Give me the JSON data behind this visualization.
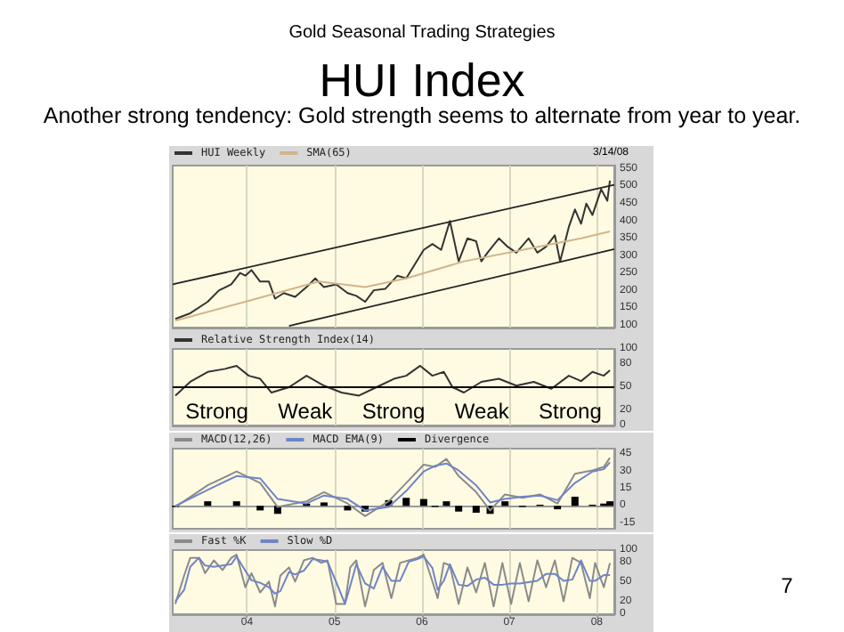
{
  "chart_data": [
    {
      "type": "line",
      "title": "HUI Index",
      "subtitle": "Another strong tendency: Gold strength seems to alternate from year to year.",
      "annotations": [
        "Gold Seasonal Trading Strategies",
        "3/14/08",
        "7"
      ],
      "legend": "top left",
      "grid": "x",
      "tick_labels": "y",
      "xlim": [
        2003.15,
        2008.2
      ],
      "xticks": [
        {
          "value": 2004,
          "label": null
        },
        {
          "value": 2005,
          "label": null
        },
        {
          "value": 2006,
          "label": null
        },
        {
          "value": 2007,
          "label": null
        },
        {
          "value": 2008,
          "label": null
        }
      ],
      "ylim": [
        95,
        560
      ],
      "yticks": [
        100,
        150,
        200,
        250,
        300,
        350,
        400,
        450,
        500,
        550
      ],
      "series": [
        {
          "name": "HUI Weekly",
          "color": "#333333",
          "x": [
            2003.18,
            2003.35,
            2003.55,
            2003.68,
            2003.82,
            2003.92,
            2003.98,
            2004.05,
            2004.15,
            2004.25,
            2004.32,
            2004.42,
            2004.55,
            2004.68,
            2004.78,
            2004.88,
            2005.02,
            2005.15,
            2005.25,
            2005.35,
            2005.45,
            2005.58,
            2005.72,
            2005.82,
            2005.92,
            2006.02,
            2006.12,
            2006.22,
            2006.32,
            2006.42,
            2006.52,
            2006.62,
            2006.68,
            2006.75,
            2006.88,
            2006.98,
            2007.08,
            2007.22,
            2007.32,
            2007.42,
            2007.52,
            2007.58,
            2007.68,
            2007.75,
            2007.82,
            2007.88,
            2007.95,
            2008.05,
            2008.12,
            2008.15
          ],
          "values": [
            120,
            136,
            169,
            202,
            219,
            252,
            244,
            260,
            227,
            227,
            178,
            194,
            183,
            211,
            236,
            211,
            219,
            194,
            186,
            169,
            202,
            206,
            244,
            236,
            277,
            318,
            335,
            318,
            401,
            285,
            351,
            343,
            285,
            310,
            351,
            327,
            310,
            351,
            310,
            327,
            360,
            285,
            384,
            434,
            393,
            451,
            418,
            492,
            459,
            517
          ]
        },
        {
          "name": "SMA(65)",
          "color": "#d2b48c",
          "x": [
            2003.18,
            2003.98,
            2004.82,
            2005.35,
            2005.82,
            2006.48,
            2007.15,
            2007.82,
            2008.15
          ],
          "values": [
            115,
            169,
            227,
            211,
            236,
            285,
            318,
            351,
            371
          ]
        },
        {
          "color": "#222222",
          "x": [
            2003.15,
            2008.2
          ],
          "values": [
            219,
            505
          ]
        },
        {
          "color": "#222222",
          "x": [
            2004.48,
            2008.2
          ],
          "values": [
            100,
            320
          ]
        }
      ]
    },
    {
      "type": "line",
      "annotations": [
        "Strong",
        "Weak",
        "Strong",
        "Weak",
        "Strong"
      ],
      "legend": "top left",
      "grid": "x",
      "tick_labels": "y",
      "xlim": [
        2003.15,
        2008.2
      ],
      "xticks": [
        {
          "value": 2004,
          "label": null
        },
        {
          "value": 2005,
          "label": null
        },
        {
          "value": 2006,
          "label": null
        },
        {
          "value": 2007,
          "label": null
        },
        {
          "value": 2008,
          "label": null
        }
      ],
      "ylim": [
        0,
        100
      ],
      "yticks": [
        0,
        20,
        50,
        80,
        100
      ],
      "ref_lines": [
        {
          "axis": "y",
          "value": 50,
          "color": "#000000"
        }
      ],
      "series": [
        {
          "name": "Relative Strength Index(14)",
          "color": "#333333",
          "x": [
            2003.18,
            2003.35,
            2003.55,
            2003.75,
            2003.88,
            2004.02,
            2004.15,
            2004.28,
            2004.48,
            2004.68,
            2004.88,
            2005.08,
            2005.28,
            2005.48,
            2005.68,
            2005.82,
            2005.98,
            2006.12,
            2006.25,
            2006.35,
            2006.48,
            2006.68,
            2006.88,
            2007.08,
            2007.28,
            2007.48,
            2007.68,
            2007.82,
            2007.95,
            2008.08,
            2008.15
          ],
          "values": [
            39,
            57,
            70,
            74,
            78,
            65,
            61,
            43,
            50,
            65,
            52,
            43,
            39,
            50,
            61,
            65,
            78,
            65,
            70,
            50,
            43,
            57,
            61,
            52,
            57,
            48,
            65,
            58,
            70,
            65,
            72
          ]
        }
      ]
    },
    {
      "type": "line",
      "legend": "top left",
      "grid": "x",
      "tick_labels": "y",
      "xlim": [
        2003.15,
        2008.2
      ],
      "xticks": [
        {
          "value": 2004,
          "label": null
        },
        {
          "value": 2005,
          "label": null
        },
        {
          "value": 2006,
          "label": null
        },
        {
          "value": 2007,
          "label": null
        },
        {
          "value": 2008,
          "label": null
        }
      ],
      "ylim": [
        -20,
        50
      ],
      "yticks": [
        -15,
        0,
        15,
        30,
        45
      ],
      "x": [
        2003.18,
        2003.55,
        2003.88,
        2004.15,
        2004.35,
        2004.68,
        2004.88,
        2005.15,
        2005.35,
        2005.62,
        2005.82,
        2006.02,
        2006.15,
        2006.28,
        2006.42,
        2006.62,
        2006.78,
        2006.95,
        2007.15,
        2007.35,
        2007.55,
        2007.75,
        2007.95,
        2008.08,
        2008.15
      ],
      "series": [
        {
          "name": "MACD(12,26)",
          "color": "#8a8a8a",
          "values": [
            -1,
            18,
            30,
            20,
            -1,
            4,
            12,
            2,
            -9,
            4,
            20,
            36,
            34,
            41,
            26,
            12,
            -4,
            10,
            7,
            10,
            2,
            28,
            31,
            34,
            42
          ]
        },
        {
          "name": "MACD EMA(9)",
          "color": "#6f84c8",
          "values": [
            0,
            14,
            26,
            24,
            6,
            2,
            9,
            6,
            -4,
            -1,
            13,
            30,
            35,
            37,
            31,
            18,
            3,
            6,
            8,
            9,
            5,
            20,
            30,
            32,
            38
          ]
        },
        {
          "name": "Divergence",
          "type": "bar",
          "color": "#000000",
          "values": [
            -1,
            4,
            4,
            -4,
            -7,
            2,
            3,
            -4,
            -5,
            5,
            7,
            6,
            -1,
            4,
            -5,
            -6,
            -7,
            4,
            -1,
            1,
            -3,
            8,
            1,
            2,
            4
          ]
        }
      ]
    },
    {
      "type": "line",
      "legend": "top left",
      "grid": "x",
      "xlim": [
        2003.15,
        2008.2
      ],
      "xticks": [
        {
          "value": 2004,
          "label": "04"
        },
        {
          "value": 2005,
          "label": "05"
        },
        {
          "value": 2006,
          "label": "06"
        },
        {
          "value": 2007,
          "label": "07"
        },
        {
          "value": 2008,
          "label": "08"
        }
      ],
      "ylim": [
        0,
        100
      ],
      "yticks": [
        0,
        20,
        50,
        80,
        100
      ],
      "x": [
        2003.18,
        2003.28,
        2003.35,
        2003.45,
        2003.52,
        2003.62,
        2003.72,
        2003.82,
        2003.88,
        2003.98,
        2004.05,
        2004.15,
        2004.25,
        2004.32,
        2004.38,
        2004.48,
        2004.55,
        2004.65,
        2004.75,
        2004.85,
        2004.92,
        2005.02,
        2005.12,
        2005.18,
        2005.25,
        2005.35,
        2005.45,
        2005.55,
        2005.65,
        2005.75,
        2005.85,
        2005.95,
        2006.02,
        2006.12,
        2006.18,
        2006.25,
        2006.32,
        2006.42,
        2006.52,
        2006.62,
        2006.72,
        2006.82,
        2006.92,
        2007.02,
        2007.12,
        2007.22,
        2007.32,
        2007.42,
        2007.52,
        2007.62,
        2007.72,
        2007.82,
        2007.92,
        2007.98,
        2008.08,
        2008.15
      ],
      "series": [
        {
          "name": "Fast %K",
          "color": "#8a8a8a",
          "values": [
            16,
            60,
            88,
            88,
            64,
            84,
            69,
            88,
            93,
            42,
            64,
            34,
            51,
            12,
            60,
            73,
            51,
            84,
            88,
            80,
            84,
            16,
            16,
            73,
            84,
            12,
            69,
            80,
            25,
            80,
            84,
            88,
            93,
            51,
            25,
            80,
            76,
            16,
            73,
            34,
            80,
            12,
            80,
            16,
            80,
            20,
            84,
            42,
            84,
            20,
            88,
            80,
            25,
            80,
            42,
            80
          ]
        },
        {
          "name": "Slow %D",
          "color": "#6f84c8",
          "values": [
            20,
            38,
            74,
            88,
            76,
            74,
            76,
            78,
            90,
            68,
            53,
            49,
            42,
            32,
            36,
            66,
            62,
            68,
            86,
            84,
            82,
            50,
            16,
            44,
            78,
            48,
            40,
            74,
            52,
            52,
            82,
            86,
            90,
            72,
            38,
            52,
            78,
            46,
            44,
            54,
            57,
            46,
            46,
            48,
            48,
            50,
            52,
            63,
            63,
            52,
            54,
            84,
            52,
            52,
            61,
            61
          ]
        }
      ]
    }
  ]
}
